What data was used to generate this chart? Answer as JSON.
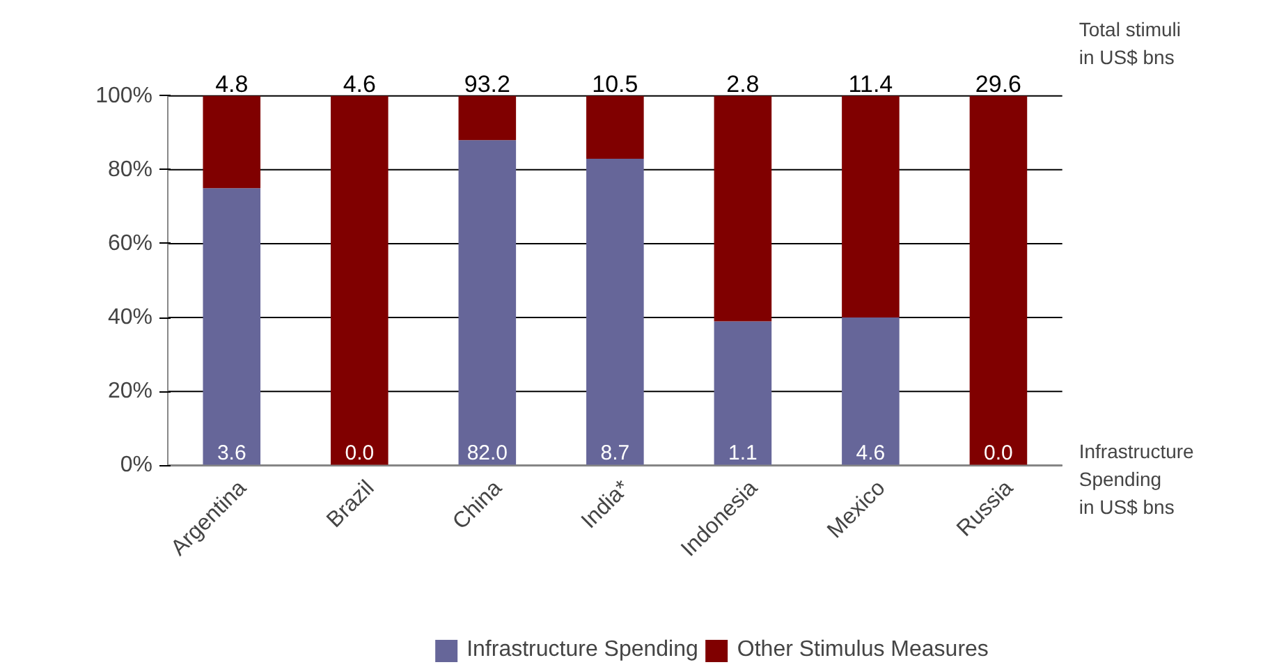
{
  "chart_data": {
    "type": "bar",
    "stacked": true,
    "categories": [
      "Argentina",
      "Brazil",
      "China",
      "India*",
      "Indonesia",
      "Mexico",
      "Russia"
    ],
    "series": [
      {
        "name": "Infrastructure Spending",
        "color": "#666699",
        "values": [
          75,
          0,
          88,
          83,
          39,
          40,
          0
        ]
      },
      {
        "name": "Other Stimulus Measures",
        "color": "#800000",
        "values": [
          25,
          100,
          12,
          17,
          61,
          60,
          100
        ]
      }
    ],
    "ylim": [
      0,
      100
    ],
    "yticks": [
      {
        "value": 0,
        "label": "0%"
      },
      {
        "value": 20,
        "label": "20%"
      },
      {
        "value": 40,
        "label": "40%"
      },
      {
        "value": 60,
        "label": "60%"
      },
      {
        "value": 80,
        "label": "80%"
      },
      {
        "value": 100,
        "label": "100%"
      }
    ],
    "grid": "y",
    "legend": "bottom",
    "annotations": [
      {
        "text": "4.8",
        "x": "Argentina",
        "y": 100
      },
      {
        "text": "4.6",
        "x": "Brazil",
        "y": 100
      },
      {
        "text": "93.2",
        "x": "China",
        "y": 100
      },
      {
        "text": "10.5",
        "x": "India*",
        "y": 100
      },
      {
        "text": "2.8",
        "x": "Indonesia",
        "y": 100
      },
      {
        "text": "11.4",
        "x": "Mexico",
        "y": 100
      },
      {
        "text": "29.6",
        "x": "Russia",
        "y": 100
      },
      {
        "text": "3.6",
        "x": "Argentina",
        "y": 0
      },
      {
        "text": "0.0",
        "x": "Brazil",
        "y": 0
      },
      {
        "text": "82.0",
        "x": "China",
        "y": 0
      },
      {
        "text": "8.7",
        "x": "India*",
        "y": 0
      },
      {
        "text": "1.1",
        "x": "Indonesia",
        "y": 0
      },
      {
        "text": "4.6",
        "x": "Mexico",
        "y": 0
      },
      {
        "text": "0.0",
        "x": "Russia",
        "y": 0
      },
      "Total stimuli\nin US$ bns",
      "Infrastructure\nSpending\nin US$ bns"
    ]
  }
}
